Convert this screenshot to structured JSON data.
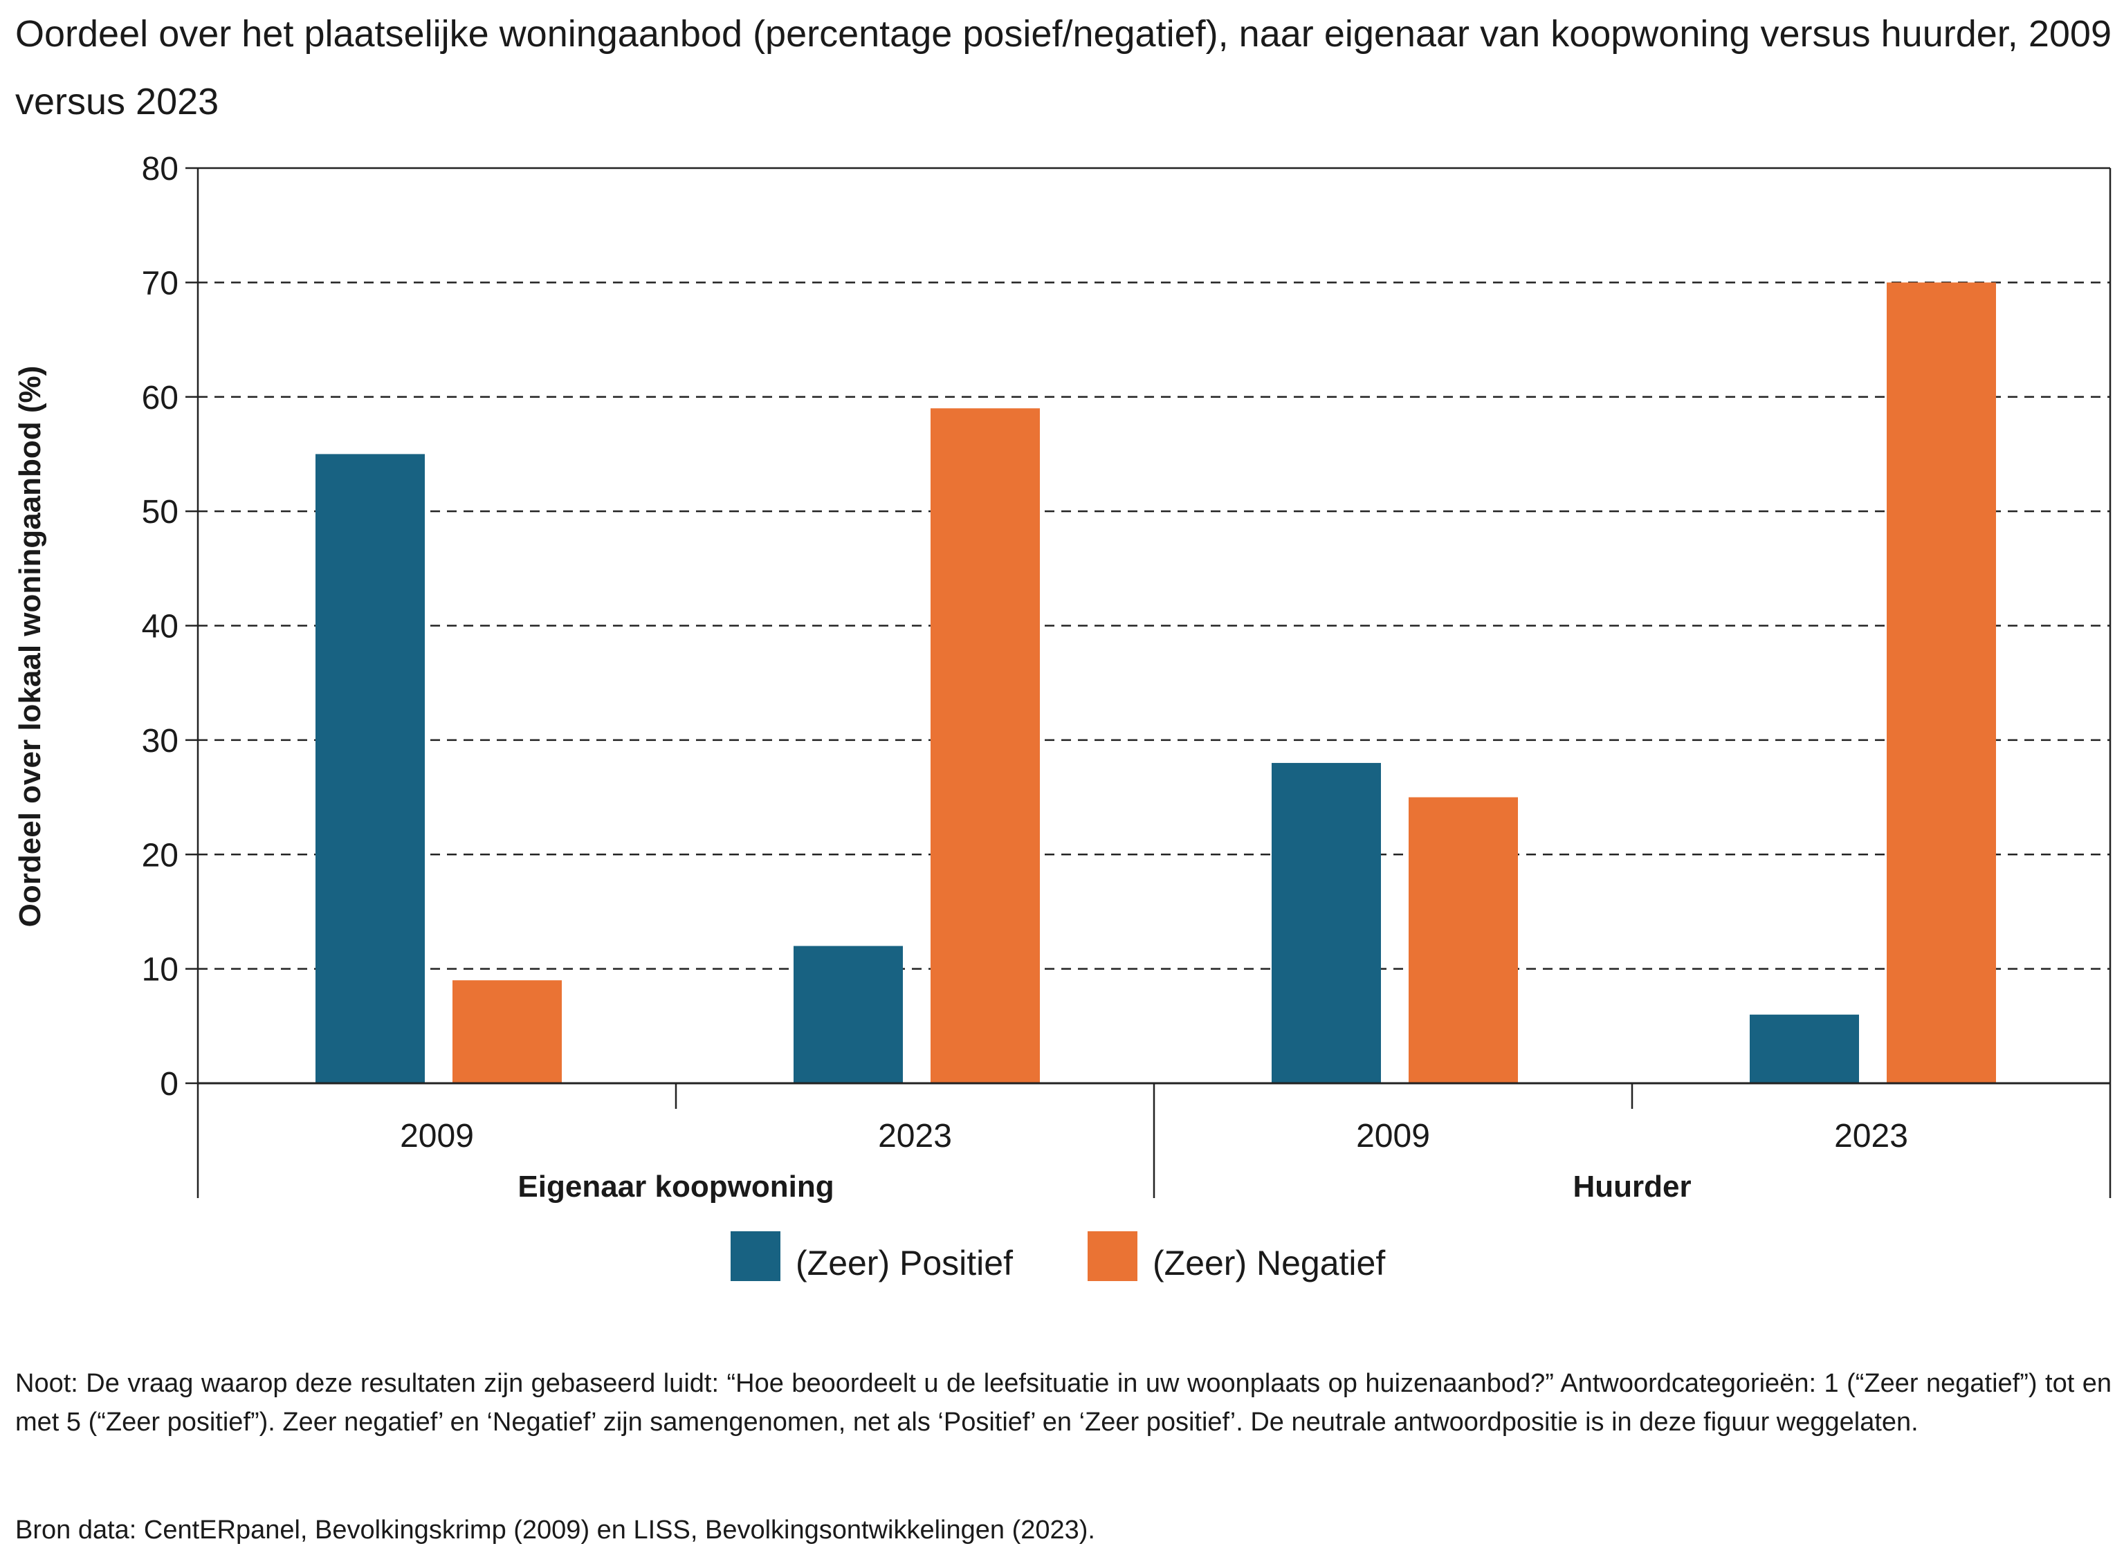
{
  "title": "Oordeel over het plaatselijke woningaanbod (percentage posief/negatief), naar eigenaar van koopwoning versus huurder, 2009 versus 2023",
  "colors": {
    "positief": "#186282",
    "negatief": "#EA7334",
    "grid": "#222222",
    "axis": "#222222"
  },
  "chart_data": {
    "type": "bar",
    "title": "Oordeel over het plaatselijke woningaanbod (percentage posief/negatief), naar eigenaar van koopwoning versus huurder, 2009 versus 2023",
    "ylabel": "Oordeel over lokaal woningaanbod (%)",
    "xlabel": "",
    "ylim": [
      0,
      80
    ],
    "yticks": [
      0,
      10,
      20,
      30,
      40,
      50,
      60,
      70,
      80
    ],
    "grid": "horizontal dashed",
    "groups": [
      {
        "label": "Eigenaar koopwoning",
        "categories": [
          "2009",
          "2023"
        ]
      },
      {
        "label": "Huurder",
        "categories": [
          "2009",
          "2023"
        ]
      }
    ],
    "categories": [
      "2009",
      "2023",
      "2009",
      "2023"
    ],
    "series": [
      {
        "name": "(Zeer) Positief",
        "color": "#186282",
        "values": [
          55,
          12,
          28,
          6
        ]
      },
      {
        "name": "(Zeer) Negatief",
        "color": "#EA7334",
        "values": [
          9,
          59,
          25,
          70
        ]
      }
    ],
    "legend": "bottom-center"
  },
  "note": "Noot: De vraag waarop deze resultaten zijn gebaseerd luidt: “Hoe beoordeelt u de leefsituatie in uw woonplaats op huizenaanbod?” Antwoordcategorieën: 1 (“Zeer negatief”) tot en met 5 (“Zeer positief”). Zeer negatief’ en ‘Negatief’ zijn samengenomen, net als ‘Positief’ en ‘Zeer positief’. De neutrale antwoordpositie is in deze figuur weggelaten.",
  "source": "Bron data: CentERpanel, Bevolkingskrimp (2009) en LISS, Bevolkingsontwikkelingen (2023)."
}
